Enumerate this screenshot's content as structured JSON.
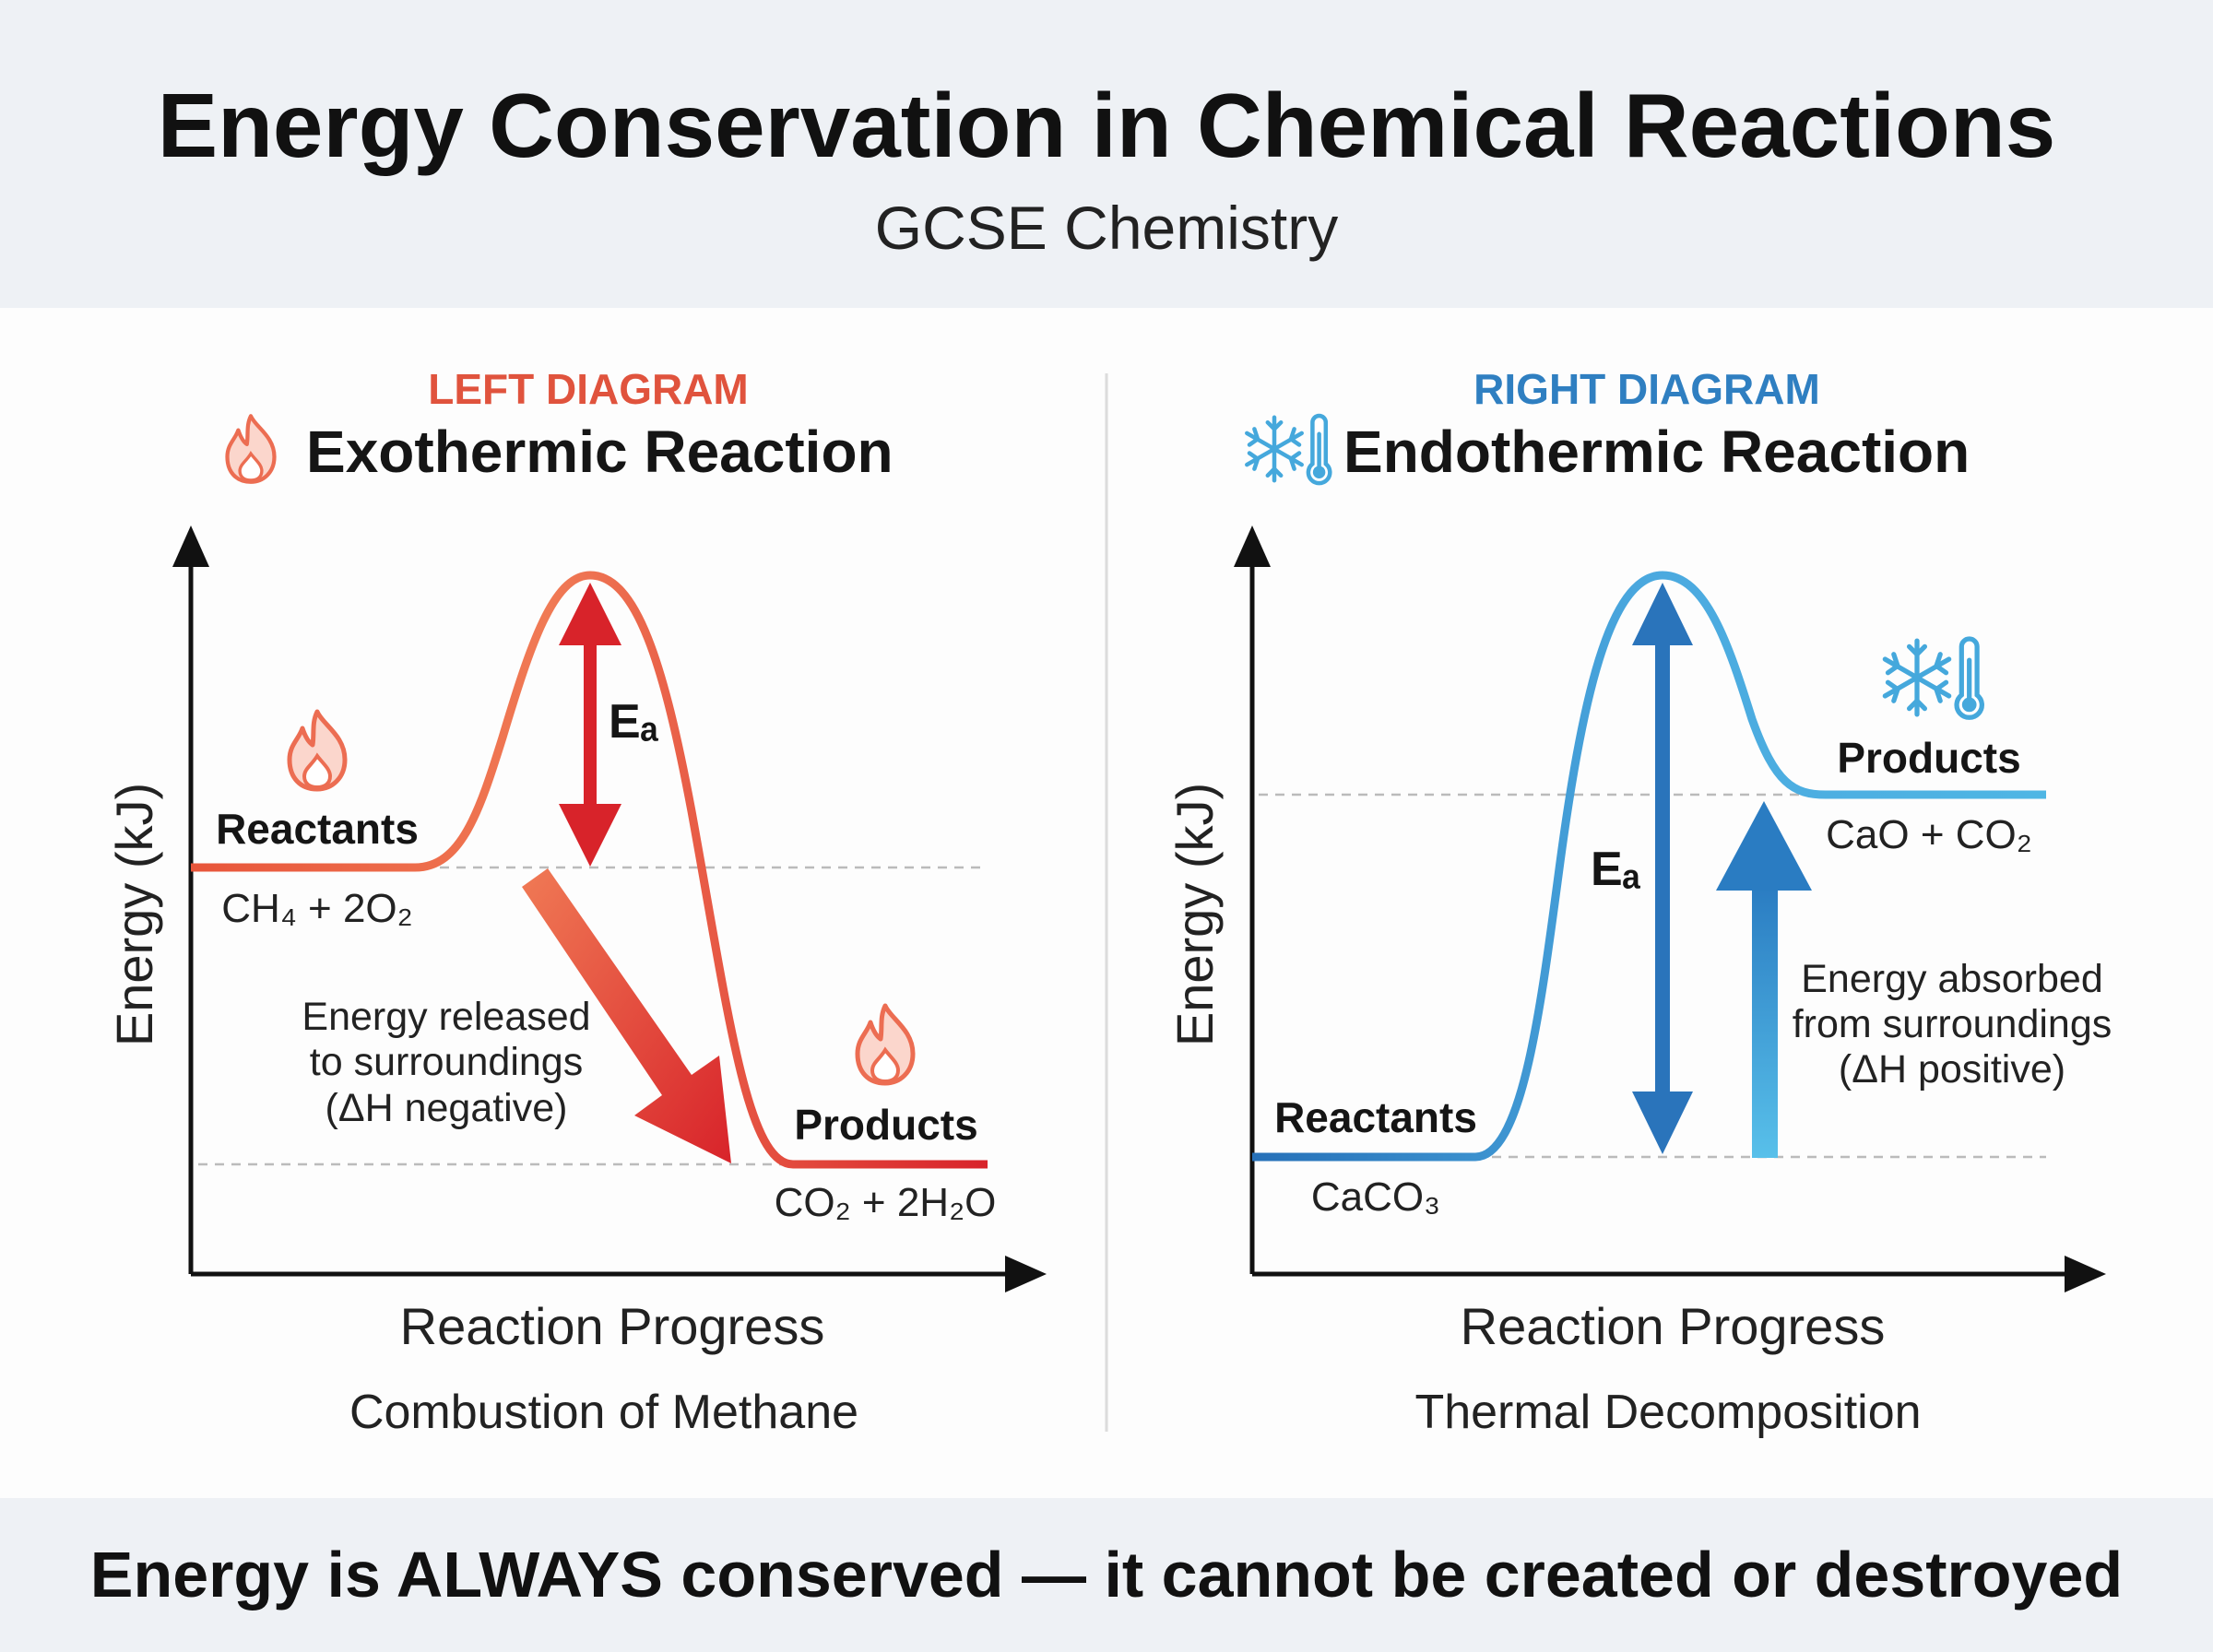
{
  "header": {
    "title": "Energy Conservation in Chemical Reactions",
    "subtitle": "GCSE Chemistry"
  },
  "footer": {
    "text": "Energy is ALWAYS conserved — it cannot be created or destroyed"
  },
  "colors": {
    "exo": "#e0352b",
    "exo_light": "#f07050",
    "endo": "#2a7cc2",
    "endo_light": "#4fb6e4",
    "header_bg": "#eef1f5"
  },
  "left": {
    "tag": "LEFT DIAGRAM",
    "title": "Exothermic Reaction",
    "icon": "flame-icon",
    "y_label": "Energy (kJ)",
    "x_label": "Reaction Progress",
    "caption": "Combustion of Methane",
    "reactants_label": "Reactants",
    "reactants_formula": "CH₄ + 2O₂",
    "products_label": "Products",
    "products_formula": "CO₂ + 2H₂O",
    "ea_label": "Eₐ",
    "note": [
      "Energy released",
      "to surroundings",
      "(ΔH negative)"
    ]
  },
  "right": {
    "tag": "RIGHT DIAGRAM",
    "title": "Endothermic Reaction",
    "icon": "snowflake-thermometer-icon",
    "y_label": "Energy (kJ)",
    "x_label": "Reaction Progress",
    "caption": "Thermal Decomposition",
    "reactants_label": "Reactants",
    "reactants_formula": "CaCO₃",
    "products_label": "Products",
    "products_formula": "CaO + CO₂",
    "ea_label": "Eₐ",
    "note": [
      "Energy absorbed",
      "from surroundings",
      "(ΔH positive)"
    ]
  }
}
